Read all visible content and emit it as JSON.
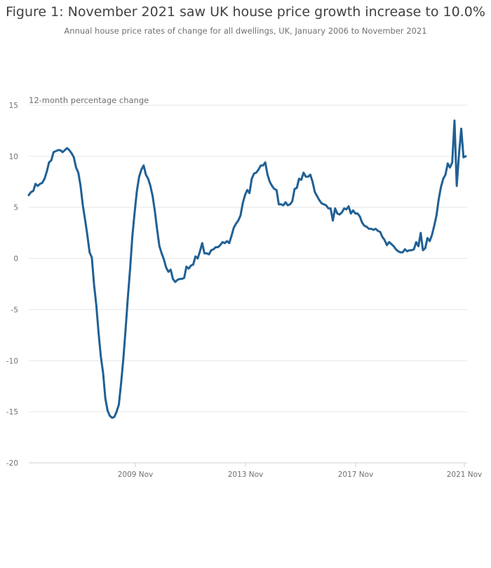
{
  "header": {
    "title": "Figure 1: November 2021 saw UK house price growth increase to 10.0%",
    "subtitle": "Annual house price rates of change for all dwellings, UK, January 2006 to November 2021"
  },
  "chart_data": {
    "type": "line",
    "title": "Figure 1: November 2021 saw UK house price growth increase to 10.0%",
    "subtitle": "Annual house price rates of change for all dwellings, UK, January 2006 to November 2021",
    "ylabel": "12-month percentage change",
    "xlabel": "",
    "ylim": [
      -20,
      15
    ],
    "yticks": [
      15,
      10,
      5,
      0,
      -5,
      -10,
      -15,
      -20
    ],
    "xtick_labels": [
      "2009 Nov",
      "2013 Nov",
      "2017 Nov",
      "2021 Nov"
    ],
    "x_start": "2006 Jan",
    "x_end": "2021 Nov",
    "grid": "horizontal",
    "legend": "none",
    "color": "#206095",
    "series": [
      {
        "values": [
          6.2,
          6.5,
          6.6,
          7.3,
          7.1,
          7.3,
          7.4,
          7.8,
          8.5,
          9.4,
          9.6,
          10.4,
          10.5,
          10.6,
          10.6,
          10.4,
          10.6,
          10.8,
          10.6,
          10.3,
          9.9,
          8.9,
          8.4,
          7.1,
          5.2,
          3.8,
          2.3,
          0.6,
          0.1,
          -2.6,
          -4.6,
          -7.3,
          -9.6,
          -11.2,
          -13.7,
          -14.9,
          -15.4,
          -15.6,
          -15.5,
          -15.0,
          -14.3,
          -12.2,
          -9.8,
          -6.9,
          -3.8,
          -1.0,
          2.2,
          4.5,
          6.6,
          8.0,
          8.7,
          9.1,
          8.2,
          7.8,
          7.1,
          6.1,
          4.6,
          2.8,
          1.2,
          0.5,
          -0.1,
          -0.9,
          -1.3,
          -1.1,
          -2.0,
          -2.3,
          -2.1,
          -2.0,
          -2.0,
          -1.9,
          -0.8,
          -1.0,
          -0.7,
          -0.6,
          0.2,
          0.0,
          0.7,
          1.5,
          0.5,
          0.5,
          0.4,
          0.8,
          0.9,
          1.1,
          1.1,
          1.3,
          1.6,
          1.5,
          1.7,
          1.5,
          2.2,
          3.0,
          3.4,
          3.7,
          4.2,
          5.4,
          6.2,
          6.7,
          6.4,
          7.8,
          8.3,
          8.4,
          8.7,
          9.1,
          9.1,
          9.4,
          8.2,
          7.5,
          7.1,
          6.8,
          6.7,
          5.3,
          5.3,
          5.2,
          5.5,
          5.2,
          5.3,
          5.6,
          6.8,
          6.9,
          7.8,
          7.7,
          8.4,
          8.0,
          8.0,
          8.2,
          7.5,
          6.5,
          6.1,
          5.7,
          5.4,
          5.3,
          5.2,
          4.9,
          4.9,
          3.7,
          4.9,
          4.4,
          4.3,
          4.5,
          4.9,
          4.8,
          5.1,
          4.4,
          4.7,
          4.4,
          4.4,
          4.1,
          3.5,
          3.2,
          3.1,
          2.9,
          2.9,
          2.8,
          2.9,
          2.7,
          2.6,
          2.1,
          1.8,
          1.3,
          1.6,
          1.4,
          1.2,
          0.9,
          0.7,
          0.6,
          0.6,
          0.9,
          0.7,
          0.8,
          0.8,
          0.9,
          1.6,
          1.2,
          2.5,
          0.8,
          1.0,
          2.0,
          1.7,
          2.3,
          3.2,
          4.2,
          5.8,
          7.0,
          7.8,
          8.2,
          9.3,
          8.9,
          9.4,
          13.5,
          7.1,
          10.2,
          12.7,
          9.9,
          10.0
        ]
      }
    ]
  }
}
